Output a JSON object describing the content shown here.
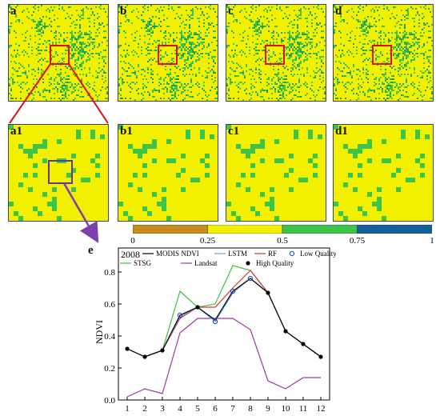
{
  "panels": {
    "top": [
      "a",
      "b",
      "c",
      "d"
    ],
    "zoom": [
      "a1",
      "b1",
      "c1",
      "d1"
    ],
    "chart": "e"
  },
  "colors": {
    "map_background": "#f2ef00",
    "vegetation": "#3cc44a",
    "dense_vegetation": "#1e9e4c",
    "highlight_box": "#e01010",
    "inset_box": "#5a3a9a",
    "arrow": "#7b3fb0"
  },
  "colorbar": {
    "colors": [
      "#c88a1a",
      "#f2ef00",
      "#3cc44a",
      "#13609c"
    ],
    "ticks": [
      "0",
      "0.25",
      "0.5",
      "0.75",
      "1"
    ]
  },
  "chart_data": {
    "type": "line",
    "annotation": "2008",
    "xlabel": "",
    "ylabel": "NDVI",
    "xlim": [
      0.5,
      12.5
    ],
    "ylim": [
      0,
      0.95
    ],
    "x": [
      1,
      2,
      3,
      4,
      5,
      6,
      7,
      8,
      9,
      10,
      11,
      12
    ],
    "yticks": [
      "0.0",
      "0.2",
      "0.4",
      "0.6",
      "0.8"
    ],
    "series": [
      {
        "name": "MODIS NDVI",
        "color": "#000000",
        "values": [
          0.32,
          0.27,
          0.31,
          0.53,
          0.58,
          0.5,
          0.68,
          0.76,
          0.67,
          0.43,
          0.35,
          0.27
        ]
      },
      {
        "name": "LSTM",
        "color": "#5aa8e0",
        "values": [
          0.32,
          0.27,
          0.31,
          0.52,
          0.58,
          0.49,
          0.67,
          0.76,
          0.67,
          0.43,
          0.35,
          0.27
        ]
      },
      {
        "name": "RF",
        "color": "#e03030",
        "values": [
          0.32,
          0.27,
          0.31,
          0.51,
          0.58,
          0.58,
          0.7,
          0.81,
          0.67,
          0.43,
          0.35,
          0.27
        ]
      },
      {
        "name": "STSG",
        "color": "#40c040",
        "values": [
          0.32,
          0.27,
          0.31,
          0.68,
          0.58,
          0.6,
          0.84,
          0.81,
          0.67,
          0.43,
          0.35,
          0.27
        ]
      },
      {
        "name": "Landsat",
        "color": "#9a3aa0",
        "values": [
          0.02,
          0.07,
          0.04,
          0.42,
          0.51,
          0.51,
          0.51,
          0.44,
          0.12,
          0.07,
          0.14,
          0.14
        ]
      }
    ],
    "high_quality": {
      "name": "High Quality",
      "x": [
        1,
        2,
        3,
        5,
        9,
        10,
        11,
        12
      ],
      "values": [
        0.32,
        0.27,
        0.31,
        0.58,
        0.67,
        0.43,
        0.35,
        0.27
      ]
    },
    "low_quality": {
      "name": "Low Quality",
      "x": [
        4,
        6,
        7,
        8
      ],
      "values": [
        0.53,
        0.49,
        0.68,
        0.76
      ]
    },
    "legend": "top"
  }
}
